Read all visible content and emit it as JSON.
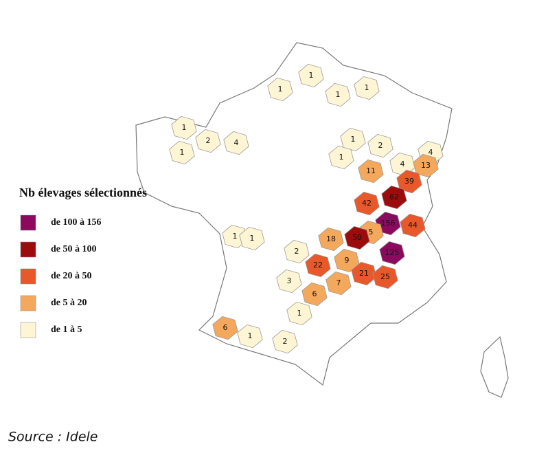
{
  "legend": {
    "title": "Nb élevages sélectionnés",
    "items": [
      {
        "label": "de 100 à 156",
        "color": "#8b0a5e"
      },
      {
        "label": "de 50 à 100",
        "color": "#9c0c0c"
      },
      {
        "label": "de 20 à 50",
        "color": "#e8582a"
      },
      {
        "label": "de 5 à 20",
        "color": "#f4a85c"
      },
      {
        "label": "de 1 à 5",
        "color": "#fdf5d3"
      }
    ]
  },
  "regions": [
    {
      "value": 1,
      "color": "#fdf5d3"
    },
    {
      "value": 1,
      "color": "#fdf5d3"
    },
    {
      "value": 1,
      "color": "#fdf5d3"
    },
    {
      "value": 1,
      "color": "#fdf5d3"
    },
    {
      "value": 1,
      "color": "#fdf5d3"
    },
    {
      "value": 2,
      "color": "#fdf5d3"
    },
    {
      "value": 4,
      "color": "#fdf5d3"
    },
    {
      "value": 1,
      "color": "#fdf5d3"
    },
    {
      "value": 1,
      "color": "#fdf5d3"
    },
    {
      "value": 2,
      "color": "#fdf5d3"
    },
    {
      "value": 1,
      "color": "#fdf5d3"
    },
    {
      "value": 4,
      "color": "#fdf5d3"
    },
    {
      "value": 4,
      "color": "#fdf5d3"
    },
    {
      "value": 13,
      "color": "#f4a85c"
    },
    {
      "value": 11,
      "color": "#f4a85c"
    },
    {
      "value": 39,
      "color": "#e8582a"
    },
    {
      "value": 42,
      "color": "#e8582a"
    },
    {
      "value": 62,
      "color": "#9c0c0c"
    },
    {
      "value": 156,
      "color": "#8b0a5e"
    },
    {
      "value": 44,
      "color": "#e8582a"
    },
    {
      "value": 5,
      "color": "#f4a85c"
    },
    {
      "value": 50,
      "color": "#9c0c0c"
    },
    {
      "value": 1,
      "color": "#fdf5d3"
    },
    {
      "value": 1,
      "color": "#fdf5d3"
    },
    {
      "value": 18,
      "color": "#f4a85c"
    },
    {
      "value": 2,
      "color": "#fdf5d3"
    },
    {
      "value": 125,
      "color": "#8b0a5e"
    },
    {
      "value": 9,
      "color": "#f4a85c"
    },
    {
      "value": 22,
      "color": "#e8582a"
    },
    {
      "value": 3,
      "color": "#fdf5d3"
    },
    {
      "value": 21,
      "color": "#e8582a"
    },
    {
      "value": 25,
      "color": "#e8582a"
    },
    {
      "value": 7,
      "color": "#f4a85c"
    },
    {
      "value": 6,
      "color": "#f4a85c"
    },
    {
      "value": 1,
      "color": "#fdf5d3"
    },
    {
      "value": 6,
      "color": "#f4a85c"
    },
    {
      "value": 1,
      "color": "#fdf5d3"
    },
    {
      "value": 2,
      "color": "#fdf5d3"
    }
  ],
  "source": "Source : Idele"
}
